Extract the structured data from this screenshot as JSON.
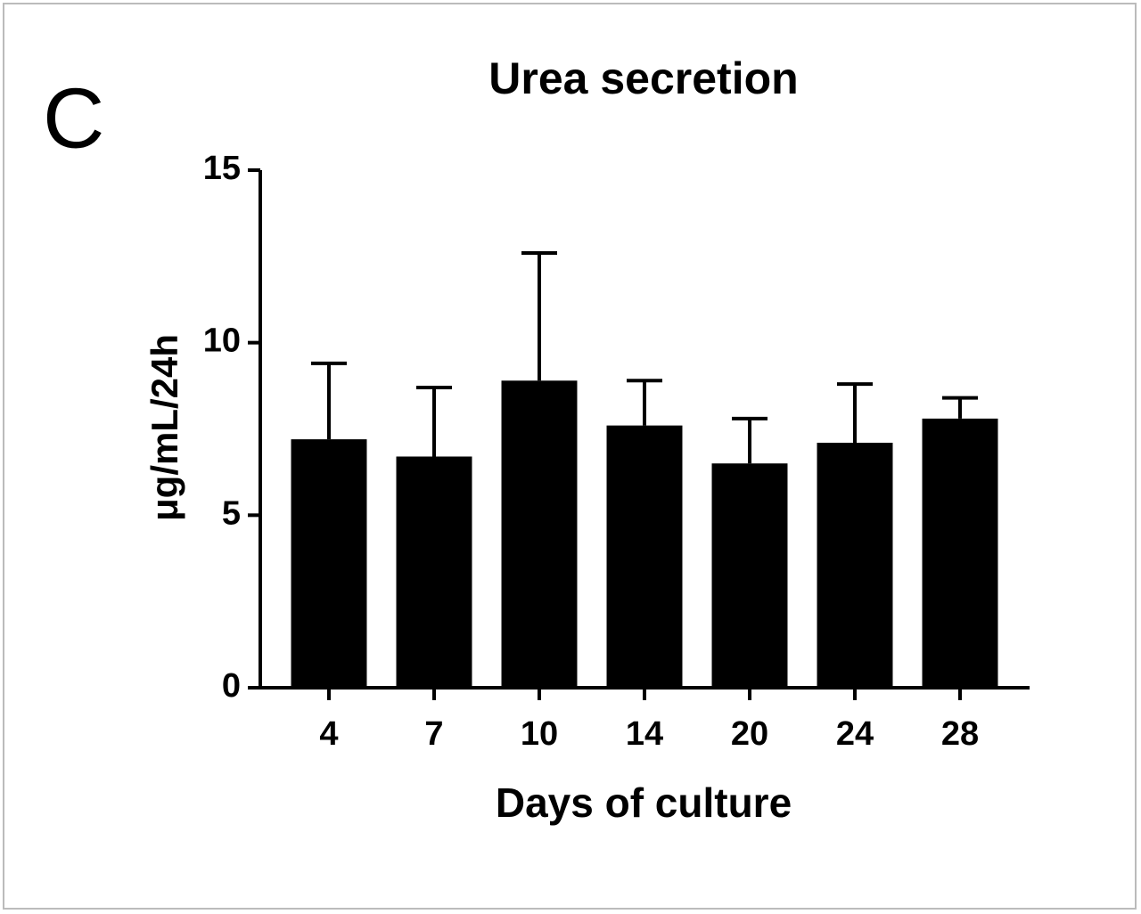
{
  "panel_label": "C",
  "chart_data": {
    "type": "bar",
    "title": "Urea secretion",
    "x_label": "Days of culture",
    "y_label": "μg/mL/24h",
    "categories": [
      "4",
      "7",
      "10",
      "14",
      "20",
      "24",
      "28"
    ],
    "values": [
      7.2,
      6.7,
      8.9,
      7.6,
      6.5,
      7.1,
      7.8
    ],
    "errors": [
      2.2,
      2.0,
      3.7,
      1.3,
      1.3,
      1.7,
      0.6
    ],
    "color": "#000000",
    "ylim": [
      0,
      15
    ],
    "yticks": [
      0,
      5,
      10,
      15
    ],
    "grid": false
  }
}
